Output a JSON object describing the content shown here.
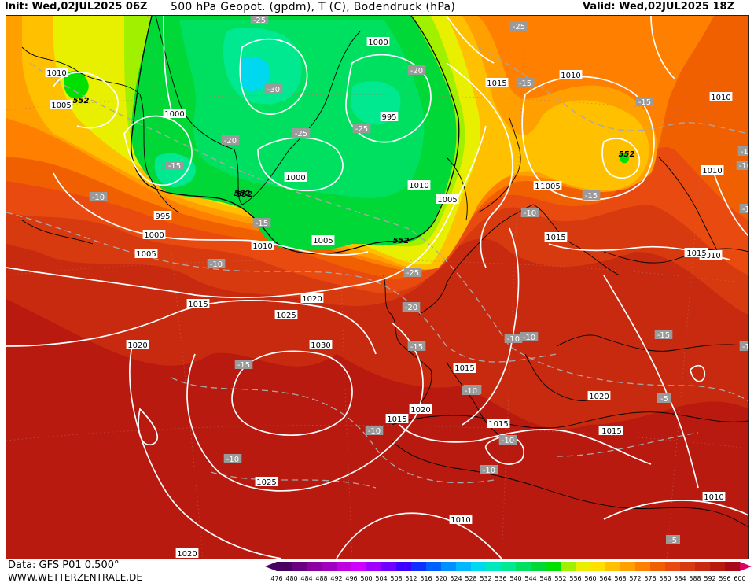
{
  "header": {
    "init": "Init: Wed,02JUL2025 06Z",
    "title": "500 hPa Geopot. (gpdm), T (C), Bodendruck (hPa)",
    "valid": "Valid: Wed,02JUL2025 18Z"
  },
  "footer": {
    "data": "Data: GFS P01 0.500°",
    "site": "WWW.WETTERZENTRALE.DE"
  },
  "scale": {
    "values": [
      "476",
      "480",
      "484",
      "488",
      "492",
      "496",
      "500",
      "504",
      "508",
      "512",
      "516",
      "520",
      "524",
      "528",
      "532",
      "536",
      "540",
      "544",
      "548",
      "552",
      "556",
      "560",
      "564",
      "568",
      "572",
      "576",
      "580",
      "584",
      "588",
      "592",
      "596",
      "600"
    ],
    "colors": [
      "#4a0060",
      "#6a0080",
      "#8a00a0",
      "#a000c0",
      "#c000e0",
      "#d000ff",
      "#a000ff",
      "#7000ff",
      "#4000ff",
      "#1030ff",
      "#0060ff",
      "#0090ff",
      "#00b8ff",
      "#00d8f0",
      "#00e8c0",
      "#00e890",
      "#00e060",
      "#00d838",
      "#00e000",
      "#a0f000",
      "#e8f000",
      "#ffe000",
      "#ffc000",
      "#ffa000",
      "#ff8000",
      "#f06000",
      "#e84a10",
      "#d83a10",
      "#c82a10",
      "#b81a10",
      "#a80a18",
      "#d80060"
    ]
  },
  "map": {
    "pressure_labels": [
      "1010",
      "1005",
      "1000",
      "995",
      "1000",
      "1005",
      "1010",
      "1015",
      "1020",
      "1025",
      "1030",
      "1025",
      "1020",
      "1015",
      "1010",
      "1005",
      "1000",
      "995",
      "1000",
      "1005",
      "1010",
      "1015",
      "1020",
      "1015",
      "1010",
      "1015",
      "1010",
      "1015",
      "1010",
      "1015",
      "1015",
      "1020",
      "1015",
      "1010",
      "1015",
      "1010",
      "1005",
      "1010",
      "1010",
      "1015",
      "1020"
    ],
    "temperature_labels": [
      "-25",
      "-25",
      "-20",
      "-30",
      "-25",
      "-25",
      "-15",
      "-20",
      "-15",
      "-15",
      "-10",
      "-10",
      "-15",
      "-10",
      "-15",
      "-25",
      "-20",
      "-15",
      "-10",
      "-10",
      "-15",
      "-15",
      "-10",
      "-10",
      "-10",
      "-10",
      "-10",
      "-10",
      "-10",
      "-5",
      "-10",
      "-10",
      "-5",
      "-15"
    ],
    "geopotential_labels": [
      "552",
      "552",
      "552",
      "552",
      "552"
    ]
  }
}
